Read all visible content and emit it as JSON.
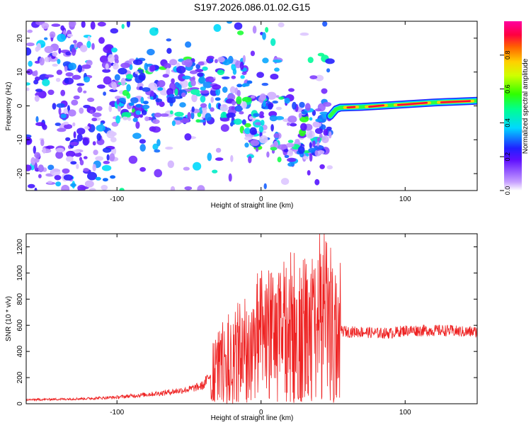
{
  "title": "S197.2026.086.01.02.G15",
  "colorbar": {
    "label": "Normalized spectral amplitude",
    "ticks": [
      "0.0",
      "0.2",
      "0.4",
      "0.6",
      "0.8"
    ],
    "tick_values": [
      0.0,
      0.2,
      0.4,
      0.6,
      0.8
    ],
    "range": [
      0,
      1
    ]
  },
  "chart_data": [
    {
      "type": "heatmap",
      "title": "S197.2026.086.01.02.G15",
      "xlabel": "Height of straight line (km)",
      "ylabel": "Frequency (Hz)",
      "xlim": [
        -163,
        150
      ],
      "ylim": [
        -25,
        25
      ],
      "xticks": [
        -100,
        0,
        100
      ],
      "xtick_labels": [
        "-100",
        "0",
        "100"
      ],
      "yticks": [
        -20,
        -10,
        0,
        10,
        20
      ],
      "ytick_labels": [
        "-20",
        "-10",
        "0",
        "10",
        "20"
      ],
      "ridge": {
        "x": [
          48,
          52,
          55,
          70,
          90,
          120,
          150
        ],
        "freq": [
          -3,
          -1,
          -0.5,
          -0.3,
          0.2,
          1.0,
          1.5
        ],
        "amplitude": [
          0.3,
          0.5,
          0.8,
          0.85,
          0.9,
          0.9,
          0.6
        ]
      },
      "noise_regions": [
        {
          "x": [
            -163,
            -100
          ],
          "freq": [
            -25,
            25
          ],
          "level": 0.25
        },
        {
          "x": [
            -100,
            48
          ],
          "freq": [
            -25,
            25
          ],
          "level": 0.35
        }
      ]
    },
    {
      "type": "line",
      "xlabel": "Height of straight line (km)",
      "ylabel": "SNR (10 * v/v)",
      "xlim": [
        -163,
        150
      ],
      "ylim": [
        0,
        1300
      ],
      "xticks": [
        -100,
        0,
        100
      ],
      "xtick_labels": [
        "-100",
        "0",
        "100"
      ],
      "yticks": [
        0,
        200,
        400,
        600,
        800,
        1000,
        1200
      ],
      "ytick_labels": [
        "0",
        "200",
        "400",
        "600",
        "800",
        "1000",
        "1200"
      ],
      "series": [
        {
          "name": "SNR",
          "color": "#ee2222",
          "x": [
            -163,
            -140,
            -120,
            -100,
            -90,
            -80,
            -70,
            -60,
            -50,
            -40,
            -35,
            -30,
            -20,
            -10,
            0,
            10,
            20,
            30,
            40,
            45,
            50,
            55,
            60,
            70,
            80,
            90,
            100,
            110,
            120,
            130,
            140,
            150
          ],
          "values": [
            30,
            35,
            40,
            50,
            60,
            70,
            80,
            95,
            110,
            140,
            230,
            300,
            380,
            420,
            500,
            530,
            550,
            580,
            620,
            650,
            600,
            560,
            550,
            550,
            540,
            540,
            560,
            560,
            560,
            560,
            550,
            550
          ]
        }
      ]
    }
  ]
}
